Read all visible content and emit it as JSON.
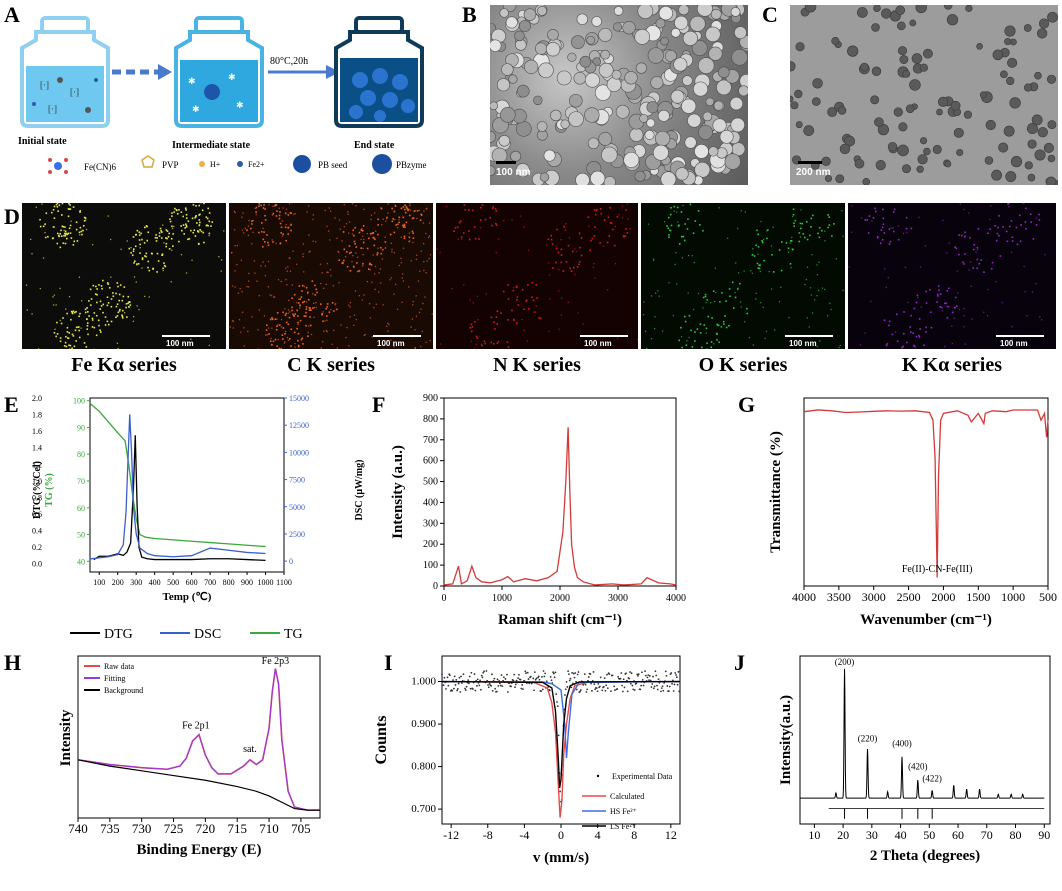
{
  "panels": {
    "A": {
      "letter": "A",
      "arrow_label": "80°C,20h",
      "states": [
        "Initial state",
        "Intermediate state",
        "End state"
      ],
      "legend": [
        "Fe(CN)6",
        "PVP",
        "H+",
        "Fe2+",
        "PB seed",
        "PBzyme"
      ]
    },
    "B": {
      "letter": "B",
      "scalebar": "100 nm"
    },
    "C": {
      "letter": "C",
      "scalebar": "200 nm"
    },
    "D": {
      "letter": "D",
      "maps": [
        {
          "label": "Fe Kα series",
          "color": "#e8e84a",
          "scalebar": "100 nm"
        },
        {
          "label": "C K series",
          "color": "#e8661e",
          "scalebar": "100 nm"
        },
        {
          "label": "N K series",
          "color": "#c81e1e",
          "scalebar": "100 nm"
        },
        {
          "label": "O K series",
          "color": "#2ec83c",
          "scalebar": "100 nm"
        },
        {
          "label": "K Kα series",
          "color": "#9628c8",
          "scalebar": "100 nm"
        }
      ]
    },
    "E": {
      "letter": "E"
    },
    "F": {
      "letter": "F"
    },
    "G": {
      "letter": "G",
      "annotation": "Fe(II)-CN-Fe(III)"
    },
    "H": {
      "letter": "H",
      "peak1": "Fe 2p1",
      "peak2": "Fe 2p3",
      "sat": "sat."
    },
    "I": {
      "letter": "I"
    },
    "J": {
      "letter": "J"
    }
  },
  "chart_data": [
    {
      "id": "E",
      "type": "line",
      "xlabel": "Temp (℃)",
      "ylabel_left_outer": "DTG (%/Cel)",
      "ylabel_left_inner": "TG (%)",
      "ylabel_right": "DSC (μW/mg)",
      "xlim": [
        50,
        1100
      ],
      "xticks": [
        100,
        200,
        300,
        400,
        500,
        600,
        700,
        800,
        900,
        1000,
        1100
      ],
      "yticks_dtg": [
        "0.0",
        "0.2",
        "0.4",
        "0.6",
        "0.8",
        "1.0",
        "1.2",
        "1.4",
        "1.6",
        "1.8",
        "2.0"
      ],
      "yticks_tg": [
        40,
        50,
        60,
        70,
        80,
        90,
        100
      ],
      "yticks_dsc": [
        0,
        2500,
        5000,
        7500,
        10000,
        12500,
        15000
      ],
      "legend": [
        "DTG",
        "DSC",
        "TG"
      ],
      "colors": {
        "DTG": "#000000",
        "DSC": "#3a5fcd",
        "TG": "#3aa83a"
      },
      "series": [
        {
          "name": "TG",
          "x": [
            50,
            100,
            150,
            200,
            240,
            260,
            280,
            300,
            320,
            350,
            400,
            500,
            600,
            700,
            800,
            900,
            1000
          ],
          "y": [
            99,
            96,
            92,
            88,
            85,
            76,
            65,
            56,
            50,
            49,
            48.5,
            48,
            47.5,
            47,
            46.5,
            46,
            45.5
          ]
        },
        {
          "name": "DTG",
          "x": [
            70,
            100,
            150,
            200,
            230,
            250,
            270,
            285,
            295,
            305,
            315,
            330,
            360,
            400,
            500,
            600,
            700,
            800,
            900,
            1000
          ],
          "y": [
            0.05,
            0.09,
            0.09,
            0.12,
            0.1,
            0.14,
            0.25,
            0.9,
            1.55,
            0.7,
            0.2,
            0.08,
            0.06,
            0.05,
            0.05,
            0.05,
            0.06,
            0.06,
            0.05,
            0.04
          ]
        },
        {
          "name": "DSC",
          "x": [
            50,
            100,
            150,
            200,
            230,
            245,
            255,
            265,
            275,
            285,
            300,
            320,
            360,
            400,
            500,
            600,
            700,
            800,
            900,
            1000
          ],
          "y": [
            200,
            300,
            400,
            600,
            1500,
            4500,
            9000,
            13500,
            10000,
            5000,
            2500,
            1200,
            700,
            500,
            400,
            500,
            1200,
            1000,
            800,
            700
          ]
        }
      ]
    },
    {
      "id": "F",
      "type": "line",
      "xlabel": "Raman shift (cm⁻¹)",
      "ylabel": "Intensity (a.u.)",
      "xlim": [
        0,
        4000
      ],
      "ylim": [
        0,
        900
      ],
      "xticks": [
        0,
        1000,
        2000,
        3000,
        4000
      ],
      "yticks": [
        0,
        100,
        200,
        300,
        400,
        500,
        600,
        700,
        800,
        900
      ],
      "color": "#d43a3a",
      "series": [
        {
          "name": "",
          "x": [
            0,
            150,
            250,
            300,
            400,
            480,
            550,
            650,
            800,
            1000,
            1100,
            1200,
            1400,
            1600,
            1800,
            1950,
            2050,
            2100,
            2140,
            2170,
            2200,
            2250,
            2300,
            2400,
            2600,
            2900,
            3100,
            3400,
            3500,
            3700,
            3900,
            4000
          ],
          "y": [
            5,
            10,
            95,
            10,
            25,
            95,
            40,
            20,
            15,
            30,
            45,
            20,
            35,
            25,
            40,
            70,
            260,
            500,
            760,
            450,
            200,
            90,
            40,
            20,
            5,
            10,
            5,
            10,
            40,
            15,
            10,
            5
          ]
        }
      ]
    },
    {
      "id": "G",
      "type": "line",
      "xlabel": "Wavenumber (cm⁻¹)",
      "ylabel": "Transmittance (%)",
      "xlim": [
        4000,
        500
      ],
      "xticks": [
        4000,
        3500,
        3000,
        2500,
        2000,
        1500,
        1000,
        500
      ],
      "color": "#d43a3a",
      "series": [
        {
          "name": "",
          "x": [
            4000,
            3800,
            3600,
            3400,
            3200,
            3000,
            2800,
            2600,
            2400,
            2200,
            2150,
            2120,
            2090,
            2070,
            2040,
            2000,
            1800,
            1650,
            1600,
            1500,
            1420,
            1400,
            1300,
            1100,
            1000,
            800,
            650,
            600,
            550,
            520,
            500
          ],
          "y": [
            97,
            98,
            97.5,
            96.5,
            96.8,
            97.2,
            97.5,
            97.3,
            97.5,
            96.5,
            92,
            70,
            0,
            60,
            92,
            96,
            97.5,
            95,
            91,
            96,
            90,
            96,
            97.5,
            97,
            98,
            98,
            98,
            92,
            96,
            82,
            92
          ]
        }
      ]
    },
    {
      "id": "H",
      "type": "line",
      "xlabel": "Binding Energy (E)",
      "ylabel": "Intensity",
      "xlim": [
        740,
        702
      ],
      "xticks": [
        740,
        735,
        730,
        725,
        720,
        715,
        710,
        705
      ],
      "legend": [
        "Raw data",
        "Fitting",
        "Background"
      ],
      "colors": {
        "Raw data": "#e84a4a",
        "Fitting": "#9a3ad8",
        "Background": "#000000"
      },
      "series": [
        {
          "name": "Raw data",
          "x": [
            740,
            735,
            730,
            726,
            724,
            723,
            722,
            721,
            720,
            719,
            718,
            716,
            714,
            713,
            712,
            711,
            710,
            709.5,
            709,
            708.5,
            708,
            707,
            706,
            704,
            702
          ],
          "y": [
            0.42,
            0.39,
            0.37,
            0.36,
            0.38,
            0.43,
            0.54,
            0.58,
            0.45,
            0.37,
            0.33,
            0.33,
            0.38,
            0.42,
            0.39,
            0.42,
            0.62,
            0.85,
            1.0,
            0.9,
            0.55,
            0.22,
            0.12,
            0.1,
            0.1
          ]
        },
        {
          "name": "Fitting",
          "x": [
            740,
            735,
            730,
            726,
            724,
            723,
            722,
            721,
            720,
            719,
            718,
            716,
            714,
            713,
            712,
            711,
            710,
            709.5,
            709,
            708.5,
            708,
            707,
            706,
            704,
            702
          ],
          "y": [
            0.42,
            0.39,
            0.37,
            0.36,
            0.38,
            0.43,
            0.54,
            0.58,
            0.45,
            0.37,
            0.33,
            0.33,
            0.38,
            0.42,
            0.39,
            0.42,
            0.62,
            0.85,
            1.0,
            0.9,
            0.55,
            0.22,
            0.12,
            0.1,
            0.1
          ]
        },
        {
          "name": "Background",
          "x": [
            740,
            735,
            730,
            725,
            720,
            715,
            712,
            710,
            708,
            706,
            704,
            702
          ],
          "y": [
            0.42,
            0.38,
            0.35,
            0.32,
            0.29,
            0.25,
            0.22,
            0.19,
            0.15,
            0.11,
            0.1,
            0.1
          ]
        }
      ]
    },
    {
      "id": "I",
      "type": "scatter",
      "xlabel": "v (mm/s)",
      "ylabel": "Counts",
      "xlim": [
        -13,
        13
      ],
      "ylim": [
        0.665,
        1.06
      ],
      "xticks": [
        -12,
        -8,
        -4,
        0,
        4,
        8,
        12
      ],
      "yticks": [
        "0.700",
        "0.800",
        "0.900",
        "1.000"
      ],
      "legend": [
        "Experimental Data",
        "Calculated",
        "HS Fe²⁺",
        "LS Fe²⁺"
      ],
      "colors": {
        "Experimental Data": "#000000",
        "Calculated": "#e84a4a",
        "HS Fe²⁺": "#3a6ee8",
        "LS Fe²⁺": "#000000"
      },
      "series": [
        {
          "name": "Calculated",
          "x": [
            -13,
            -3,
            -1.5,
            -1,
            -0.6,
            -0.3,
            -0.1,
            0.1,
            0.3,
            0.6,
            1,
            1.5,
            3,
            13
          ],
          "y": [
            1.0,
            0.998,
            0.985,
            0.95,
            0.88,
            0.76,
            0.68,
            0.72,
            0.83,
            0.9,
            0.96,
            0.99,
            0.999,
            1.0
          ]
        },
        {
          "name": "HS Fe²⁺",
          "x": [
            -13,
            -2,
            -1,
            0,
            0.4,
            0.6,
            0.8,
            1.2,
            2,
            13
          ],
          "y": [
            1.0,
            0.999,
            0.995,
            0.98,
            0.9,
            0.82,
            0.88,
            0.97,
            0.998,
            1.0
          ]
        },
        {
          "name": "LS Fe²⁺",
          "x": [
            -13,
            -2,
            -1,
            -0.6,
            -0.3,
            -0.15,
            0,
            0.3,
            0.6,
            1,
            2,
            13
          ],
          "y": [
            1.0,
            0.998,
            0.985,
            0.93,
            0.82,
            0.75,
            0.77,
            0.9,
            0.96,
            0.99,
            0.999,
            1.0
          ]
        }
      ]
    },
    {
      "id": "J",
      "type": "line",
      "xlabel": "2 Theta (degrees)",
      "ylabel": "Intensity(a.u.)",
      "xlim": [
        5,
        92
      ],
      "xticks": [
        10,
        20,
        30,
        40,
        50,
        60,
        70,
        80,
        90
      ],
      "peak_labels": [
        "(200)",
        "(220)",
        "(400)",
        "(420)",
        "(422)"
      ],
      "peaks": [
        {
          "x": 17.5,
          "y": 0.04
        },
        {
          "x": 20.5,
          "y": 1.0
        },
        {
          "x": 28.5,
          "y": 0.38
        },
        {
          "x": 35.5,
          "y": 0.05
        },
        {
          "x": 40.5,
          "y": 0.32
        },
        {
          "x": 46,
          "y": 0.14
        },
        {
          "x": 51,
          "y": 0.06
        },
        {
          "x": 58.5,
          "y": 0.1
        },
        {
          "x": 63,
          "y": 0.07
        },
        {
          "x": 67.5,
          "y": 0.07
        },
        {
          "x": 74,
          "y": 0.03
        },
        {
          "x": 78.5,
          "y": 0.03
        },
        {
          "x": 82.5,
          "y": 0.03
        }
      ],
      "reference_lines": [
        20.5,
        28.5,
        40.5,
        46,
        51
      ]
    }
  ]
}
